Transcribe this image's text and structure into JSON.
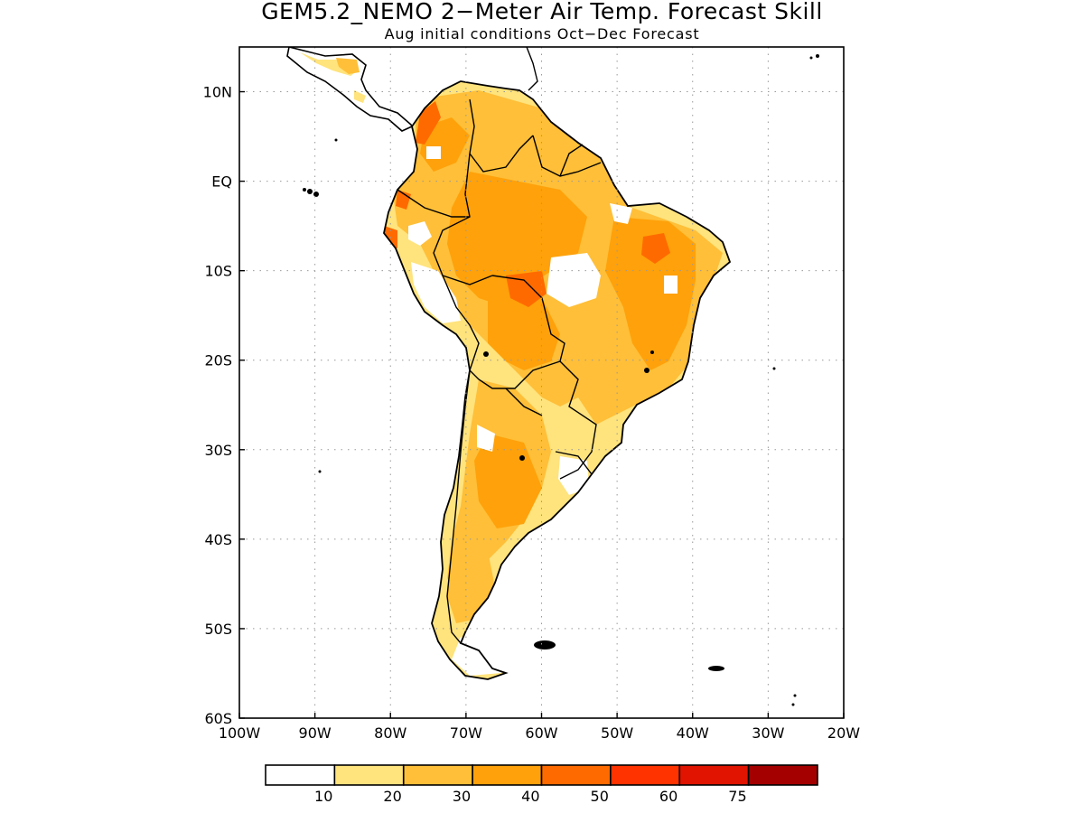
{
  "title": "GEM5.2_NEMO 2−Meter Air Temp. Forecast Skill",
  "subtitle": "Aug initial conditions  Oct−Dec Forecast",
  "map": {
    "lon_range": [
      -100,
      -20
    ],
    "lat_range": [
      -60,
      15
    ],
    "grid": "dotted",
    "x_ticks": [
      {
        "value": -100,
        "label": "100W"
      },
      {
        "value": -90,
        "label": "90W"
      },
      {
        "value": -80,
        "label": "80W"
      },
      {
        "value": -70,
        "label": "70W"
      },
      {
        "value": -60,
        "label": "60W"
      },
      {
        "value": -50,
        "label": "50W"
      },
      {
        "value": -40,
        "label": "40W"
      },
      {
        "value": -30,
        "label": "30W"
      },
      {
        "value": -20,
        "label": "20W"
      }
    ],
    "y_ticks": [
      {
        "value": 10,
        "label": "10N"
      },
      {
        "value": 0,
        "label": "EQ"
      },
      {
        "value": -10,
        "label": "10S"
      },
      {
        "value": -20,
        "label": "20S"
      },
      {
        "value": -30,
        "label": "30S"
      },
      {
        "value": -40,
        "label": "40S"
      },
      {
        "value": -50,
        "label": "50S"
      },
      {
        "value": -60,
        "label": "60S"
      }
    ]
  },
  "colorbar": {
    "colors": [
      "#ffffff",
      "#ffe37d",
      "#ffbf38",
      "#ffa10a",
      "#ff6a00",
      "#ff3300",
      "#e01400",
      "#a50000"
    ],
    "labels": [
      "10",
      "20",
      "30",
      "40",
      "50",
      "60",
      "75"
    ]
  }
}
